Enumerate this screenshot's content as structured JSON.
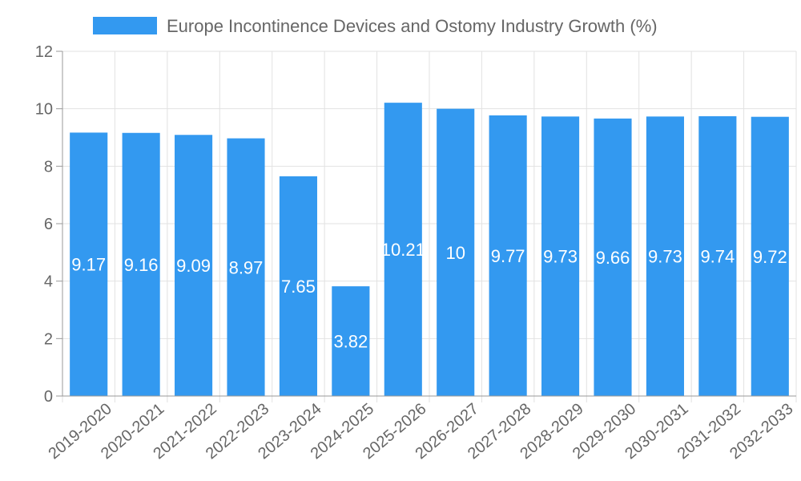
{
  "chart_data": {
    "type": "bar",
    "title": "",
    "xlabel": "",
    "ylabel": "",
    "legend": {
      "position": "top-center"
    },
    "grid": true,
    "categories": [
      "2019-2020",
      "2020-2021",
      "2021-2022",
      "2022-2023",
      "2023-2024",
      "2024-2025",
      "2025-2026",
      "2026-2027",
      "2027-2028",
      "2028-2029",
      "2029-2030",
      "2030-2031",
      "2031-2032",
      "2032-2033"
    ],
    "series": [
      {
        "name": "Europe Incontinence Devices and Ostomy Industry Growth (%)",
        "color": "#3399f0",
        "values": [
          9.17,
          9.16,
          9.09,
          8.97,
          7.65,
          3.82,
          10.21,
          10,
          9.77,
          9.73,
          9.66,
          9.73,
          9.74,
          9.72
        ],
        "labels": [
          "9.17",
          "9.16",
          "9.09",
          "8.97",
          "7.65",
          "3.82",
          "10.21",
          "10",
          "9.77",
          "9.73",
          "9.66",
          "9.73",
          "9.74",
          "9.72"
        ]
      }
    ],
    "ylim": [
      0,
      12
    ],
    "yticks": [
      0,
      2,
      4,
      6,
      8,
      10,
      12
    ]
  }
}
